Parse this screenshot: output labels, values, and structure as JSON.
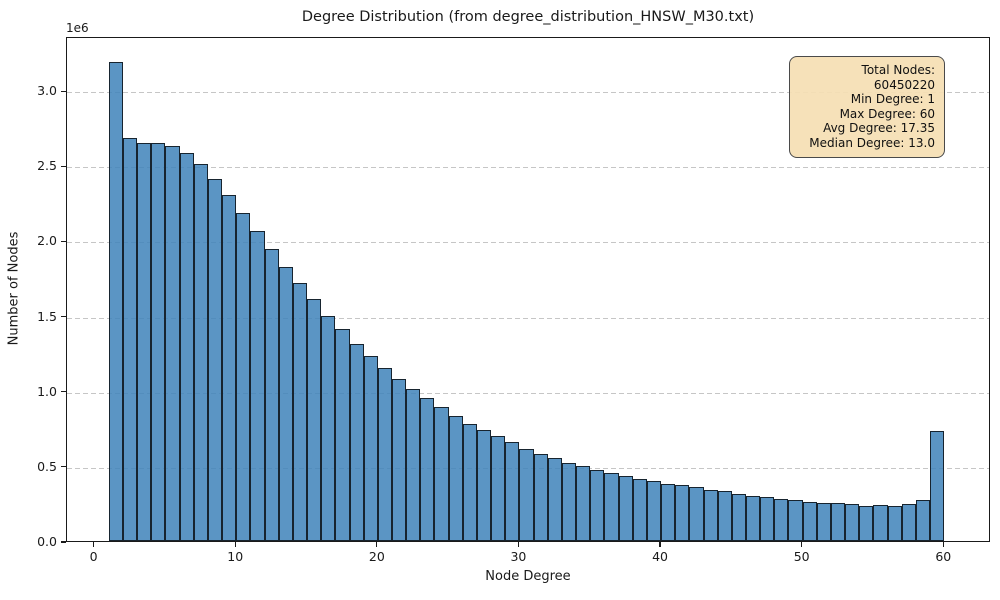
{
  "chart_data": {
    "type": "bar",
    "title": "Degree Distribution (from degree_distribution_HNSW_M30.txt)",
    "xlabel": "Node Degree",
    "ylabel": "Number of Nodes",
    "y_offset_label": "1e6",
    "x_ticks": [
      "0",
      "10",
      "20",
      "30",
      "40",
      "50",
      "60"
    ],
    "y_ticks": [
      "0.0",
      "0.5",
      "1.0",
      "1.5",
      "2.0",
      "2.5",
      "3.0"
    ],
    "xlim": [
      -1.95,
      63.3
    ],
    "ylim_millions": [
      0,
      3.36
    ],
    "grid": "y-axis dashed",
    "legend_position": "none",
    "bins_start": 1,
    "bin_width": 1,
    "counts_millions": [
      3.19,
      2.68,
      2.65,
      2.65,
      2.63,
      2.58,
      2.51,
      2.41,
      2.3,
      2.18,
      2.06,
      1.94,
      1.82,
      1.72,
      1.61,
      1.5,
      1.41,
      1.31,
      1.23,
      1.15,
      1.08,
      1.01,
      0.95,
      0.89,
      0.83,
      0.78,
      0.74,
      0.7,
      0.66,
      0.61,
      0.58,
      0.55,
      0.52,
      0.5,
      0.47,
      0.45,
      0.43,
      0.41,
      0.4,
      0.38,
      0.37,
      0.36,
      0.34,
      0.33,
      0.31,
      0.3,
      0.29,
      0.28,
      0.27,
      0.26,
      0.25,
      0.25,
      0.245,
      0.235,
      0.24,
      0.235,
      0.247,
      0.275,
      0.735
    ],
    "annotation": {
      "lines": [
        "Total Nodes: 60450220",
        "Min Degree: 1",
        "Max Degree: 60",
        "Avg Degree: 17.35",
        "Median Degree: 13.0"
      ]
    },
    "colors": {
      "bar_fill": "rgba(62, 130, 186, 0.85)",
      "bar_edge": "#17242f",
      "grid_color": "#c6c6c6",
      "annotation_bg": "rgba(245, 222, 179, 0.92)",
      "annotation_border": "#4a4a4a",
      "spine": "#1a1a1a",
      "background": "#ffffff"
    }
  }
}
